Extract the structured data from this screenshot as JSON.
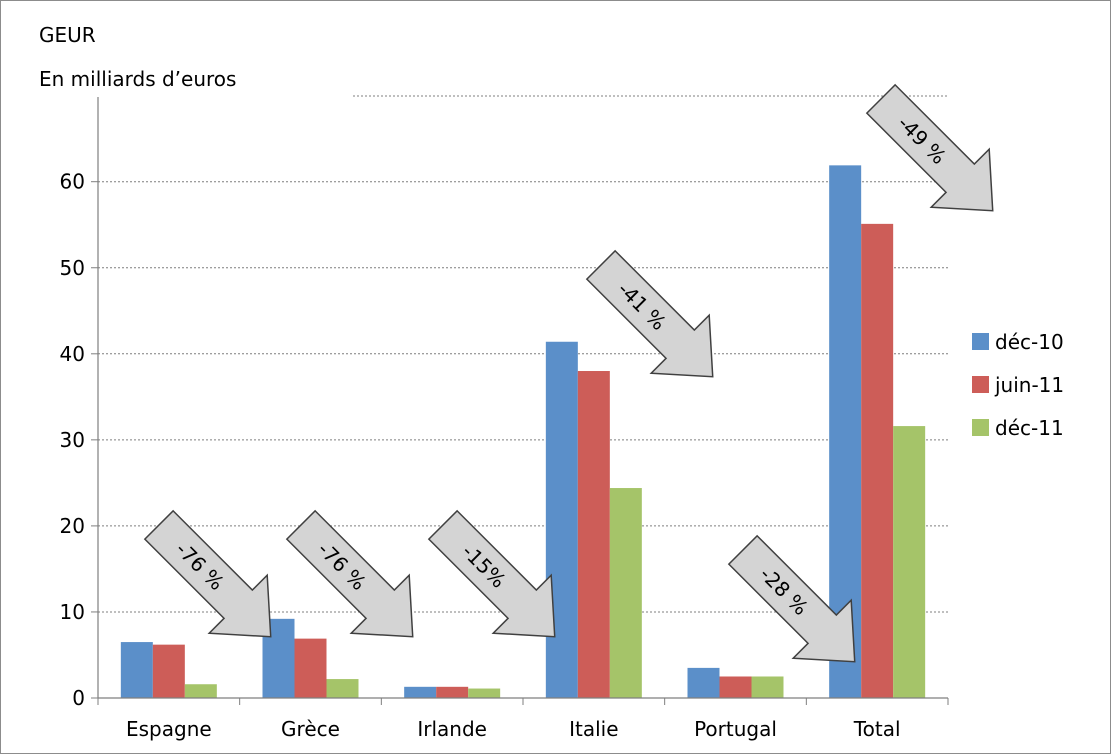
{
  "title": "GEUR",
  "unit_label": "En milliards d’euros",
  "chart_data": {
    "type": "bar",
    "categories": [
      "Espagne",
      "Grèce",
      "Irlande",
      "Italie",
      "Portugal",
      "Total"
    ],
    "series": [
      {
        "name": "déc-10",
        "color": "#5b8fc9",
        "values": [
          6.5,
          9.2,
          1.3,
          41.4,
          3.5,
          61.9
        ]
      },
      {
        "name": "juin-11",
        "color": "#cd5d58",
        "values": [
          6.2,
          6.9,
          1.3,
          38.0,
          2.5,
          55.1
        ]
      },
      {
        "name": "déc-11",
        "color": "#a5c469",
        "values": [
          1.6,
          2.2,
          1.1,
          24.4,
          2.5,
          31.6
        ]
      }
    ],
    "yticks": [
      0,
      10,
      20,
      30,
      40,
      50,
      60
    ],
    "ylim": [
      0,
      70
    ],
    "grid": true,
    "legend_position": "right",
    "annotations": [
      "-76 %",
      "-76 %",
      "-15%",
      "-41 %",
      "-28 %",
      "-49 %"
    ]
  }
}
